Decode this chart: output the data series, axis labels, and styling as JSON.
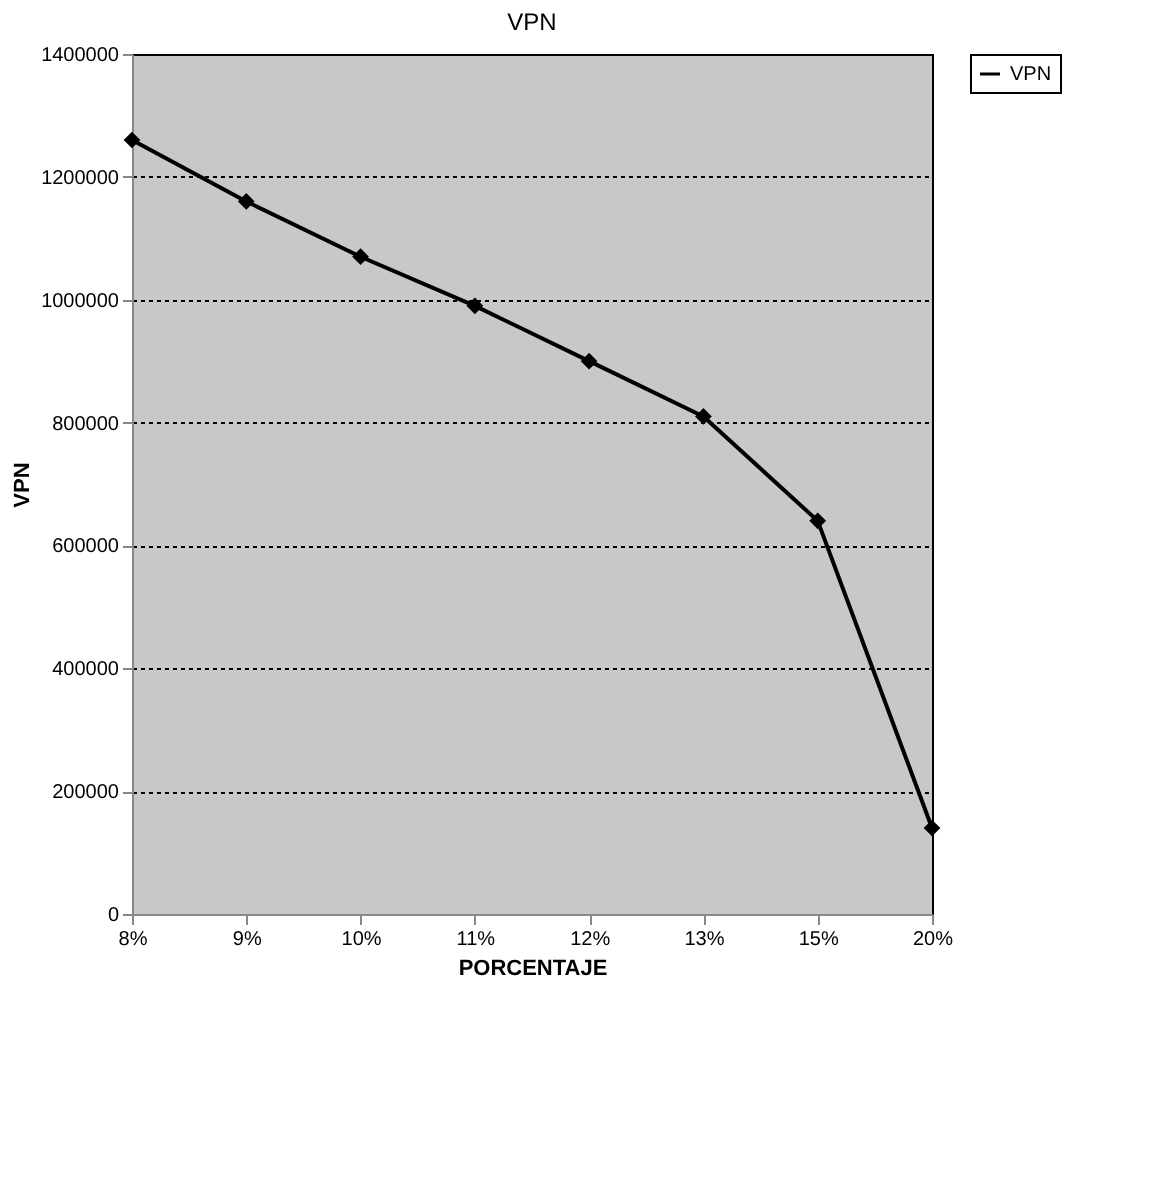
{
  "chart_data": {
    "type": "line",
    "title": "VPN",
    "xlabel": "PORCENTAJE",
    "ylabel": "VPN",
    "categories": [
      "8%",
      "9%",
      "10%",
      "11%",
      "12%",
      "13%",
      "15%",
      "20%"
    ],
    "series": [
      {
        "name": "VPN",
        "color": "#000000",
        "values": [
          1260000,
          1160000,
          1070000,
          990000,
          900000,
          810000,
          640000,
          140000
        ]
      }
    ],
    "ylim": [
      0,
      1400000
    ],
    "yticks": [
      0,
      200000,
      400000,
      600000,
      800000,
      1000000,
      1200000,
      1400000
    ],
    "grid": "y",
    "legend": "right",
    "marker": "diamond",
    "line_style": "solid"
  }
}
